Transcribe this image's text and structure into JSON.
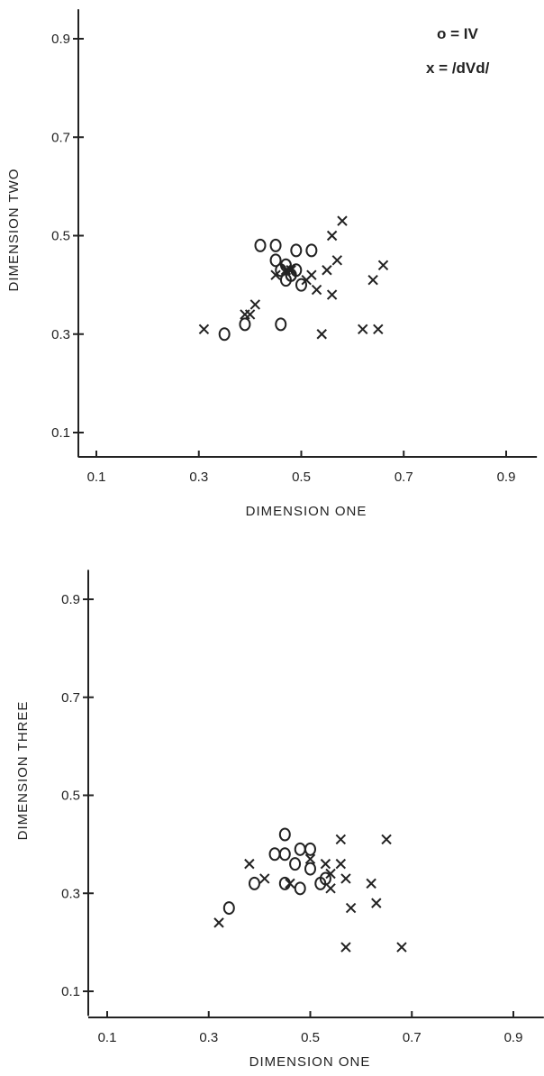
{
  "legend": {
    "circle_label": "o = IV",
    "cross_label": "x = /dVd/"
  },
  "chart_data": [
    {
      "type": "scatter",
      "title": "",
      "xlabel": "DIMENSION ONE",
      "ylabel": "DIMENSION TWO",
      "xlim": [
        0.06,
        0.96
      ],
      "ylim": [
        0.05,
        0.96
      ],
      "xticks": [
        0.1,
        0.3,
        0.5,
        0.7,
        0.9
      ],
      "yticks": [
        0.1,
        0.3,
        0.5,
        0.7,
        0.9
      ],
      "xtick_labels": [
        "0.1",
        "0.3",
        "0.5",
        "0.7",
        "0.9"
      ],
      "ytick_labels": [
        "0.1",
        "0.3",
        "0.5",
        "0.7",
        "0.9"
      ],
      "grid": false,
      "series": [
        {
          "name": "IV",
          "marker": "o",
          "points": [
            [
              0.35,
              0.3
            ],
            [
              0.39,
              0.32
            ],
            [
              0.42,
              0.48
            ],
            [
              0.45,
              0.48
            ],
            [
              0.45,
              0.45
            ],
            [
              0.46,
              0.32
            ],
            [
              0.46,
              0.43
            ],
            [
              0.47,
              0.44
            ],
            [
              0.47,
              0.41
            ],
            [
              0.48,
              0.42
            ],
            [
              0.49,
              0.47
            ],
            [
              0.49,
              0.43
            ],
            [
              0.5,
              0.4
            ],
            [
              0.52,
              0.47
            ],
            [
              0.48,
              0.42
            ]
          ]
        },
        {
          "name": "/dVd/",
          "marker": "x",
          "points": [
            [
              0.31,
              0.31
            ],
            [
              0.39,
              0.34
            ],
            [
              0.4,
              0.34
            ],
            [
              0.41,
              0.36
            ],
            [
              0.45,
              0.42
            ],
            [
              0.47,
              0.43
            ],
            [
              0.48,
              0.43
            ],
            [
              0.51,
              0.41
            ],
            [
              0.52,
              0.42
            ],
            [
              0.53,
              0.39
            ],
            [
              0.54,
              0.3
            ],
            [
              0.55,
              0.43
            ],
            [
              0.56,
              0.5
            ],
            [
              0.56,
              0.38
            ],
            [
              0.57,
              0.45
            ],
            [
              0.58,
              0.53
            ],
            [
              0.62,
              0.31
            ],
            [
              0.64,
              0.41
            ],
            [
              0.65,
              0.31
            ],
            [
              0.66,
              0.44
            ]
          ]
        }
      ]
    },
    {
      "type": "scatter",
      "title": "",
      "xlabel": "DIMENSION ONE",
      "ylabel": "DIMENSION THREE",
      "xlim": [
        0.06,
        0.96
      ],
      "ylim": [
        0.05,
        0.96
      ],
      "xticks": [
        0.1,
        0.3,
        0.5,
        0.7,
        0.9
      ],
      "yticks": [
        0.1,
        0.3,
        0.5,
        0.7,
        0.9
      ],
      "xtick_labels": [
        "0.1",
        "0.3",
        "0.5",
        "0.7",
        "0.9"
      ],
      "ytick_labels": [
        "0.1",
        "0.3",
        "0.5",
        "0.7",
        "0.9"
      ],
      "grid": false,
      "series": [
        {
          "name": "IV",
          "marker": "o",
          "points": [
            [
              0.34,
              0.27
            ],
            [
              0.39,
              0.32
            ],
            [
              0.43,
              0.38
            ],
            [
              0.45,
              0.42
            ],
            [
              0.45,
              0.38
            ],
            [
              0.45,
              0.32
            ],
            [
              0.47,
              0.36
            ],
            [
              0.48,
              0.39
            ],
            [
              0.48,
              0.31
            ],
            [
              0.5,
              0.39
            ],
            [
              0.5,
              0.35
            ],
            [
              0.52,
              0.32
            ],
            [
              0.53,
              0.33
            ]
          ]
        },
        {
          "name": "/dVd/",
          "marker": "x",
          "points": [
            [
              0.32,
              0.24
            ],
            [
              0.38,
              0.36
            ],
            [
              0.41,
              0.33
            ],
            [
              0.46,
              0.32
            ],
            [
              0.5,
              0.37
            ],
            [
              0.53,
              0.36
            ],
            [
              0.54,
              0.31
            ],
            [
              0.54,
              0.34
            ],
            [
              0.56,
              0.36
            ],
            [
              0.56,
              0.41
            ],
            [
              0.57,
              0.33
            ],
            [
              0.57,
              0.19
            ],
            [
              0.58,
              0.27
            ],
            [
              0.62,
              0.32
            ],
            [
              0.63,
              0.28
            ],
            [
              0.65,
              0.41
            ],
            [
              0.68,
              0.19
            ]
          ]
        }
      ]
    }
  ]
}
